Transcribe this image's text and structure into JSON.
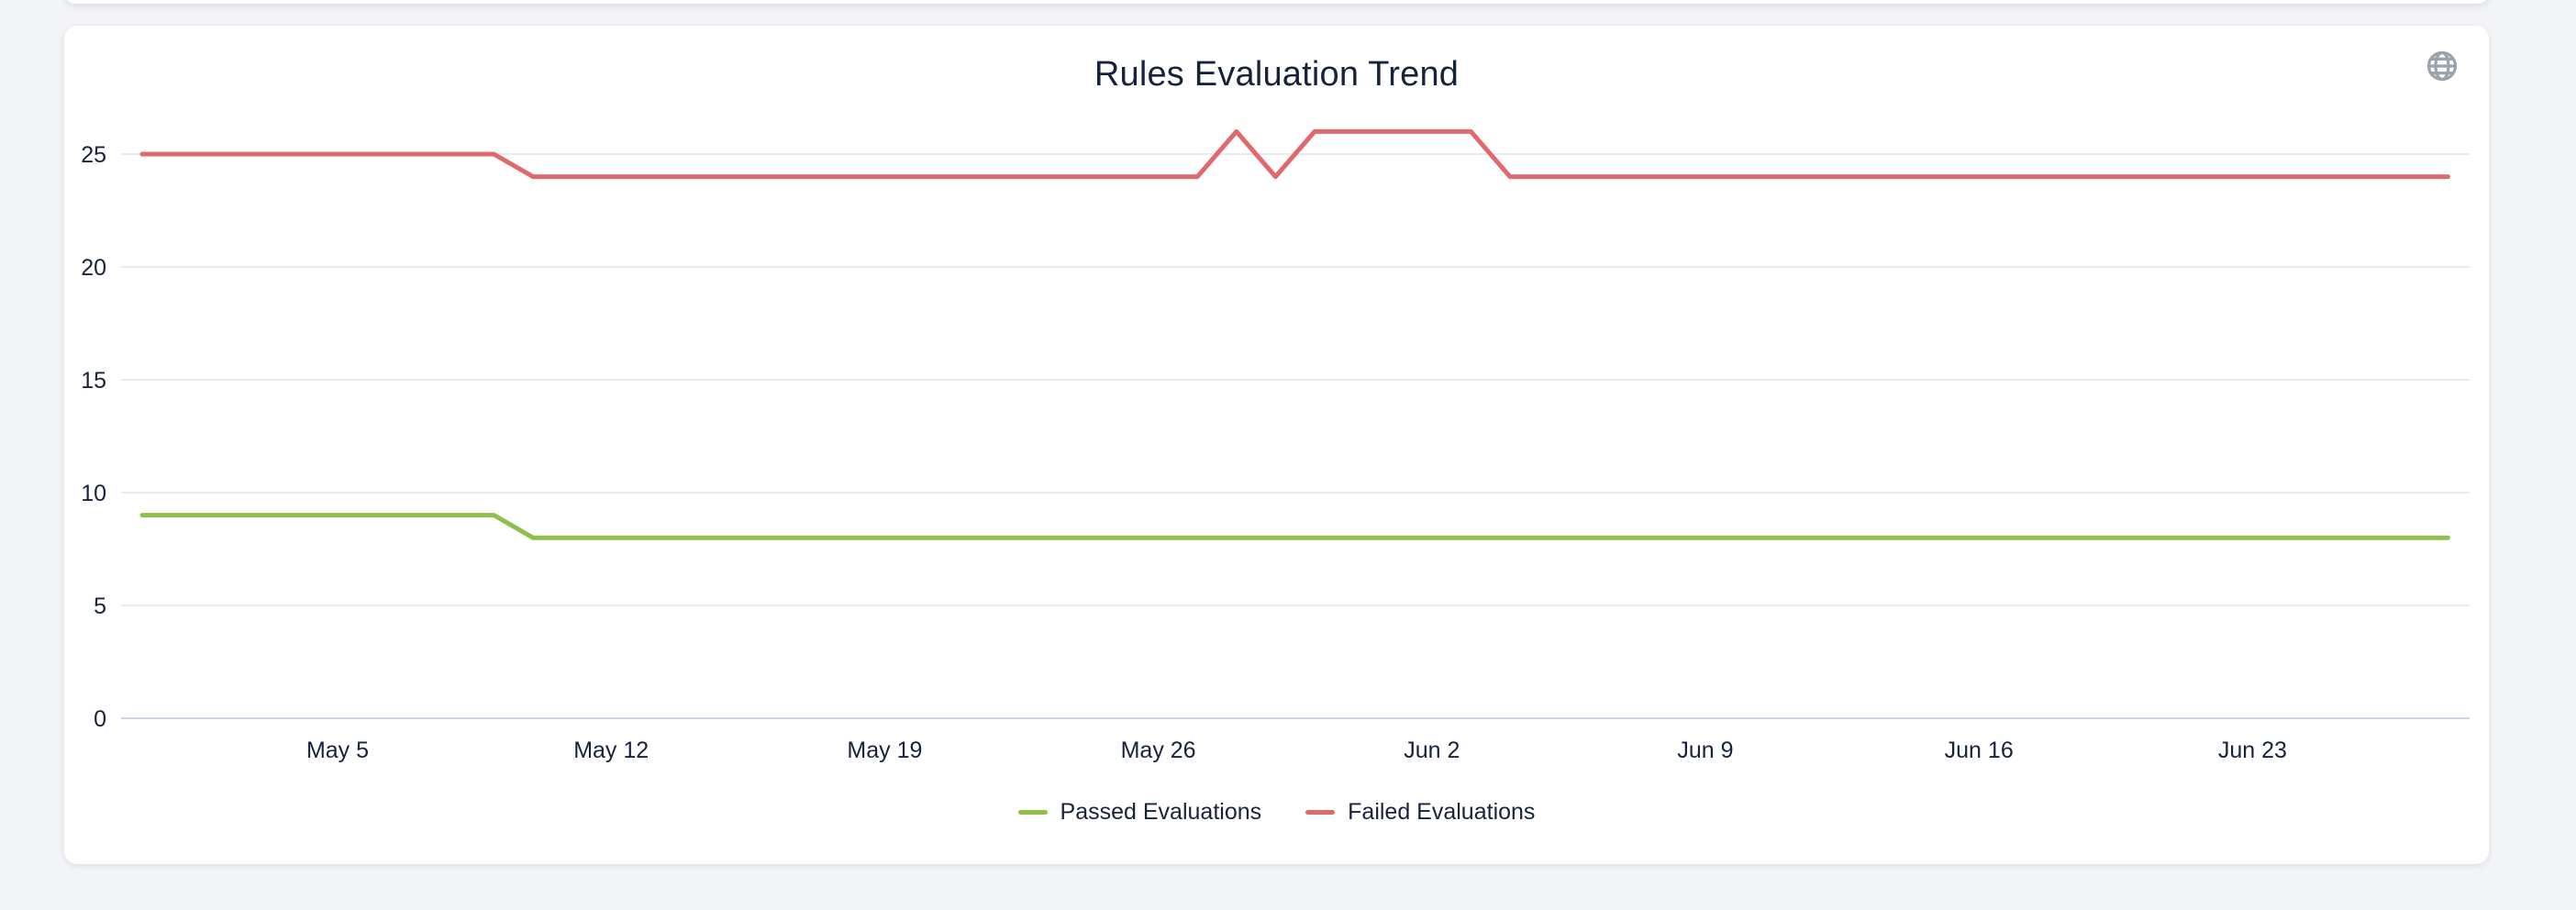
{
  "page": {
    "background_color": "#f2f4f7"
  },
  "card": {
    "background_color": "#ffffff",
    "title": "Rules Evaluation Trend",
    "title_color": "#17233d"
  },
  "toolbar": {
    "globe_icon_color": "#9aa3ae"
  },
  "chart_data": {
    "type": "line",
    "title": "Rules Evaluation Trend",
    "x_start": "Apr 30",
    "x_end": "Jun 28",
    "x_interval": "daily",
    "x_tick_labels": [
      "May 5",
      "May 12",
      "May 19",
      "May 26",
      "Jun 2",
      "Jun 9",
      "Jun 16",
      "Jun 23"
    ],
    "x_tick_day_indices": [
      5,
      12,
      19,
      26,
      33,
      40,
      47,
      54
    ],
    "y_ticks": [
      0,
      5,
      10,
      15,
      20,
      25
    ],
    "ylim": [
      0,
      26.2
    ],
    "grid": "horizontal-only",
    "axis_line_color": "#cbd5e8",
    "grid_line_color": "#e9eaed",
    "tick_label_color": "#17233d",
    "legend_position": "bottom",
    "series": [
      {
        "name": "Passed Evaluations",
        "color": "#8fc04e",
        "values": [
          9,
          9,
          9,
          9,
          9,
          9,
          9,
          9,
          9,
          9,
          8,
          8,
          8,
          8,
          8,
          8,
          8,
          8,
          8,
          8,
          8,
          8,
          8,
          8,
          8,
          8,
          8,
          8,
          8,
          8,
          8,
          8,
          8,
          8,
          8,
          8,
          8,
          8,
          8,
          8,
          8,
          8,
          8,
          8,
          8,
          8,
          8,
          8,
          8,
          8,
          8,
          8,
          8,
          8,
          8,
          8,
          8,
          8,
          8,
          8
        ]
      },
      {
        "name": "Failed Evaluations",
        "color": "#e0696e",
        "values": [
          25,
          25,
          25,
          25,
          25,
          25,
          25,
          25,
          25,
          25,
          24,
          24,
          24,
          24,
          24,
          24,
          24,
          24,
          24,
          24,
          24,
          24,
          24,
          24,
          24,
          24,
          24,
          24,
          26,
          24,
          26,
          26,
          26,
          26,
          26,
          24,
          24,
          24,
          24,
          24,
          24,
          24,
          24,
          24,
          24,
          24,
          24,
          24,
          24,
          24,
          24,
          24,
          24,
          24,
          24,
          24,
          24,
          24,
          24,
          24
        ]
      }
    ]
  },
  "legend": {
    "items": [
      {
        "label": "Passed Evaluations",
        "color": "#8fc04e"
      },
      {
        "label": "Failed Evaluations",
        "color": "#e0696e"
      }
    ]
  }
}
